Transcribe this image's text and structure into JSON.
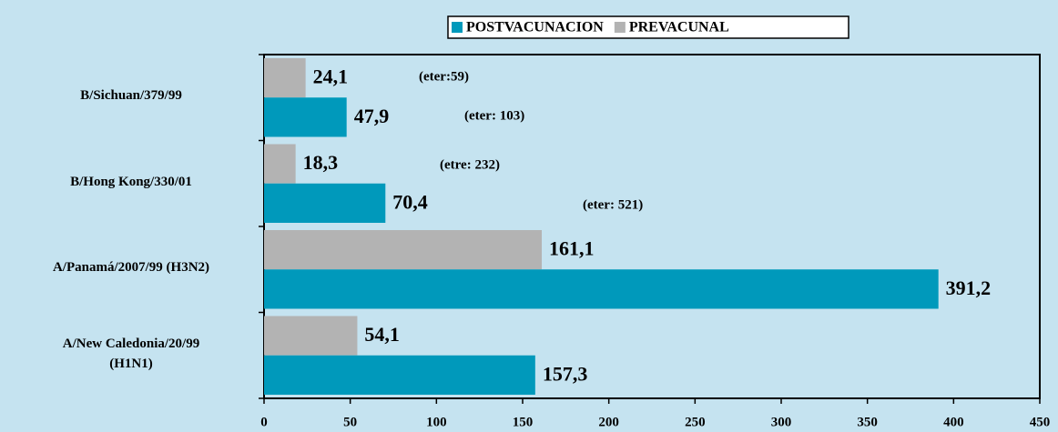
{
  "chart_data": {
    "type": "hbar",
    "categories": [
      "B/Sichuan/379/99",
      "B/Hong Kong/330/01",
      "A/Panamá/2007/99 (H3N2)",
      "A/New Caledonia/20/99\n(H1N1)"
    ],
    "series": [
      {
        "name": "POSTVACUNACION",
        "color": "#0099bb",
        "values": [
          47.9,
          70.4,
          391.2,
          157.3
        ],
        "value_labels": [
          "47,9",
          "70,4",
          "391,2",
          "157,3"
        ]
      },
      {
        "name": "PREVACUNAL",
        "color": "#b3b3b3",
        "values": [
          24.1,
          18.3,
          161.1,
          54.1
        ],
        "value_labels": [
          "24,1",
          "18,3",
          "161,1",
          "54,1"
        ]
      }
    ],
    "annotations": [
      "(eter:59)",
      "(eter: 103)",
      "(etre: 232)",
      "(eter: 521)"
    ],
    "xlim": [
      0,
      450
    ],
    "xticks": [
      0,
      50,
      100,
      150,
      200,
      250,
      300,
      350,
      400,
      450
    ]
  }
}
